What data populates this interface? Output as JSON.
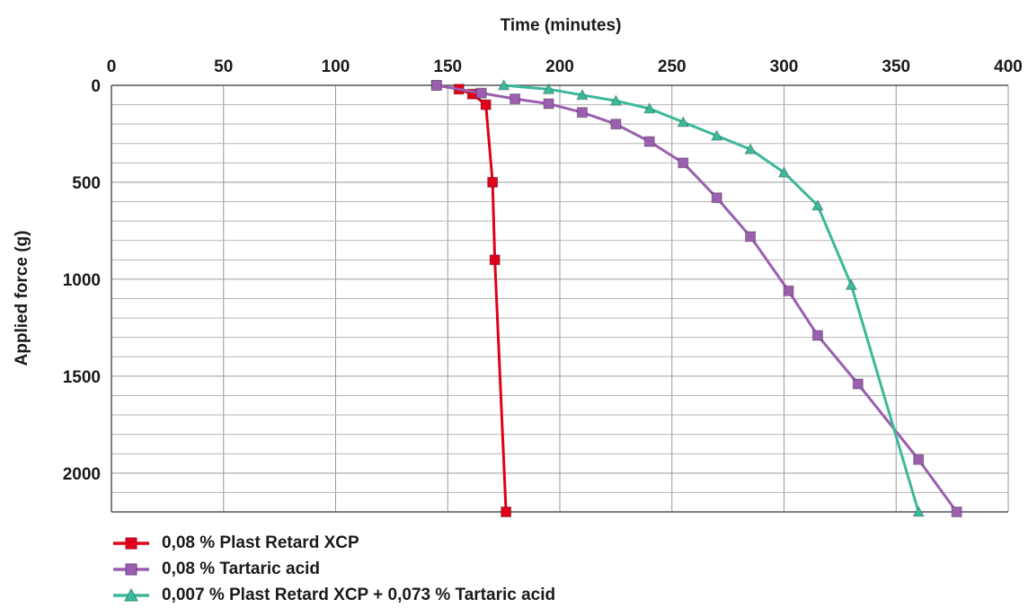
{
  "chart_data": {
    "type": "line",
    "xlabel": "Time (minutes)",
    "ylabel": "Applied force (g)",
    "xlim": [
      0,
      400
    ],
    "ylim": [
      0,
      2200
    ],
    "y_inverted": true,
    "x_ticks": [
      0,
      50,
      100,
      150,
      200,
      250,
      300,
      350,
      400
    ],
    "y_ticks": [
      0,
      500,
      1000,
      1500,
      2000
    ],
    "x_axis_position": "top",
    "grid": true,
    "legend_position": "bottom-left",
    "series": [
      {
        "name": "0,08 % Plast Retard XCP",
        "color": "#e0001a",
        "marker": "square",
        "points": [
          [
            145,
            0
          ],
          [
            155,
            20
          ],
          [
            161,
            45
          ],
          [
            167,
            100
          ],
          [
            170,
            500
          ],
          [
            171,
            900
          ],
          [
            176,
            2200
          ]
        ]
      },
      {
        "name": "0,08 % Tartaric acid",
        "color": "#9b5fb0",
        "marker": "square",
        "points": [
          [
            145,
            0
          ],
          [
            165,
            40
          ],
          [
            180,
            70
          ],
          [
            195,
            95
          ],
          [
            210,
            140
          ],
          [
            225,
            200
          ],
          [
            240,
            290
          ],
          [
            255,
            400
          ],
          [
            270,
            580
          ],
          [
            285,
            780
          ],
          [
            302,
            1060
          ],
          [
            315,
            1290
          ],
          [
            333,
            1540
          ],
          [
            360,
            1930
          ],
          [
            377,
            2200
          ]
        ]
      },
      {
        "name": "0,007 % Plast Retard XCP + 0,073 % Tartaric acid",
        "color": "#3cb89a",
        "marker": "triangle",
        "points": [
          [
            175,
            0
          ],
          [
            195,
            20
          ],
          [
            210,
            50
          ],
          [
            225,
            80
          ],
          [
            240,
            120
          ],
          [
            255,
            190
          ],
          [
            270,
            260
          ],
          [
            285,
            330
          ],
          [
            300,
            450
          ],
          [
            315,
            620
          ],
          [
            330,
            1030
          ],
          [
            360,
            2200
          ]
        ]
      }
    ]
  }
}
